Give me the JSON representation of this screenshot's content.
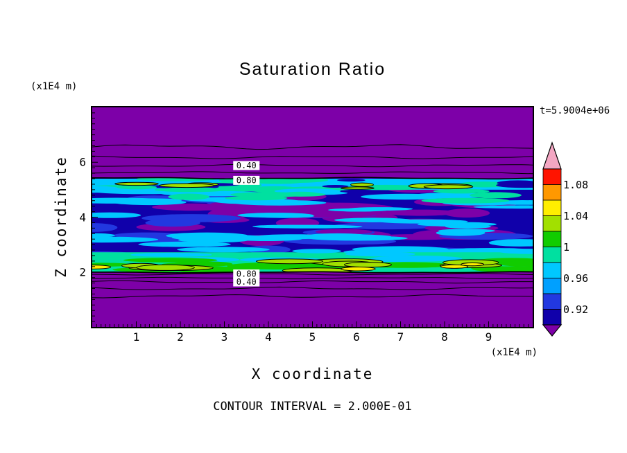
{
  "chart_data": {
    "type": "heatmap",
    "title": "Saturation Ratio",
    "time_label": "t=5.9004e+06",
    "note": "CONTOUR INTERVAL = 2.000E-01",
    "contour_interval": 0.2,
    "x_axis": {
      "label": "X coordinate",
      "unit": "(x1E4 m)",
      "min": 0,
      "max": 10,
      "major_ticks": [
        1,
        2,
        3,
        4,
        5,
        6,
        7,
        8,
        9
      ],
      "minor_step": 0.1
    },
    "z_axis": {
      "label": "Z coordinate",
      "unit": "(x1E4 m)",
      "min": 0,
      "max": 8,
      "major_ticks": [
        2,
        4,
        6
      ],
      "minor_step": 0.2
    },
    "colorbar": {
      "arrow_top": {
        "color": "#f4a7c3",
        "meaning": "> 1.10"
      },
      "arrow_bottom": {
        "color": "#7d00a8",
        "meaning": "< 0.90"
      },
      "segments": [
        {
          "from": 1.08,
          "to": 1.1,
          "color": "#ff1400"
        },
        {
          "from": 1.06,
          "to": 1.08,
          "color": "#ff9800"
        },
        {
          "from": 1.04,
          "to": 1.06,
          "color": "#ffee00"
        },
        {
          "from": 1.02,
          "to": 1.04,
          "color": "#a2e000"
        },
        {
          "from": 1.0,
          "to": 1.02,
          "color": "#11cc00"
        },
        {
          "from": 0.98,
          "to": 1.0,
          "color": "#00e0a0"
        },
        {
          "from": 0.96,
          "to": 0.98,
          "color": "#00c8ff"
        },
        {
          "from": 0.94,
          "to": 0.96,
          "color": "#00a0ff"
        },
        {
          "from": 0.92,
          "to": 0.94,
          "color": "#2238e0"
        },
        {
          "from": 0.9,
          "to": 0.92,
          "color": "#1000aa"
        }
      ],
      "tick_labels": [
        {
          "text": "1.08",
          "value": 1.08
        },
        {
          "text": "1.04",
          "value": 1.04
        },
        {
          "text": "1",
          "value": 1.0
        },
        {
          "text": "0.96",
          "value": 0.96
        },
        {
          "text": "0.92",
          "value": 0.92
        }
      ]
    },
    "palette": {
      "purple": "#7d00a8",
      "navy": "#1000aa",
      "blue": "#2238e0",
      "cyan": "#00c8ff",
      "teal": "#00e0a0",
      "green": "#11cc00",
      "greenyellow": "#a2e000",
      "yellow": "#ffee00"
    },
    "field_region": {
      "z_bottom": 1.99,
      "z_top": 5.42
    },
    "field_layers": [
      {
        "name": "mid-base",
        "type": "band",
        "z0": 1.99,
        "z1": 5.42,
        "color": "navy"
      },
      {
        "name": "purple-mottle",
        "type": "blobs",
        "seed": 11,
        "n": 26,
        "z0": 3.1,
        "z1": 5.05,
        "rx": [
          0.45,
          1.3
        ],
        "rz": [
          0.1,
          0.22
        ],
        "color": "purple"
      },
      {
        "name": "blue-streaks",
        "type": "blobs",
        "seed": 22,
        "n": 24,
        "z0": 2.5,
        "z1": 5.1,
        "rx": [
          0.5,
          1.3
        ],
        "rz": [
          0.09,
          0.18
        ],
        "color": "blue"
      },
      {
        "name": "purple-mottle-2",
        "type": "blobs",
        "seed": 33,
        "n": 12,
        "z0": 3.3,
        "z1": 4.6,
        "rx": [
          0.4,
          1.0
        ],
        "rz": [
          0.08,
          0.16
        ],
        "color": "purple"
      },
      {
        "name": "cyan-mid",
        "type": "blobs",
        "seed": 44,
        "n": 16,
        "z0": 3.2,
        "z1": 4.6,
        "rx": [
          0.5,
          1.2
        ],
        "rz": [
          0.06,
          0.12
        ],
        "color": "cyan"
      },
      {
        "name": "top-band",
        "type": "band",
        "z0": 5.0,
        "z1": 5.4,
        "color": "cyan"
      },
      {
        "name": "top-teal",
        "type": "blobs",
        "seed": 55,
        "n": 14,
        "z0": 5.0,
        "z1": 5.4,
        "rx": [
          0.4,
          1.1
        ],
        "rz": [
          0.06,
          0.12
        ],
        "color": "teal"
      },
      {
        "name": "top-gaps",
        "type": "blobs",
        "seed": 66,
        "n": 9,
        "z0": 5.02,
        "z1": 5.4,
        "rx": [
          0.3,
          0.8
        ],
        "rz": [
          0.05,
          0.1
        ],
        "color": "navy"
      },
      {
        "name": "upper-cyan-spill",
        "type": "blobs",
        "seed": 77,
        "n": 14,
        "z0": 4.5,
        "z1": 5.05,
        "rx": [
          0.5,
          1.3
        ],
        "rz": [
          0.07,
          0.13
        ],
        "color": "cyan"
      },
      {
        "name": "upper-teal",
        "type": "blobs",
        "seed": 88,
        "n": 10,
        "z0": 4.6,
        "z1": 5.1,
        "rx": [
          0.4,
          1.0
        ],
        "rz": [
          0.06,
          0.12
        ],
        "color": "teal"
      },
      {
        "name": "low-cyan",
        "type": "blobs",
        "seed": 99,
        "n": 18,
        "z0": 2.6,
        "z1": 3.5,
        "rx": [
          0.5,
          1.3
        ],
        "rz": [
          0.07,
          0.14
        ],
        "color": "cyan"
      },
      {
        "name": "bottom-band",
        "type": "band",
        "z0": 1.99,
        "z1": 2.72,
        "color": "teal"
      },
      {
        "name": "bottom-cyan",
        "type": "blobs",
        "seed": 111,
        "n": 10,
        "z0": 2.4,
        "z1": 2.85,
        "rx": [
          0.5,
          1.1
        ],
        "rz": [
          0.06,
          0.12
        ],
        "color": "cyan"
      },
      {
        "name": "bottom-green",
        "type": "blobs",
        "seed": 122,
        "n": 14,
        "z0": 2.05,
        "z1": 2.55,
        "rx": [
          0.45,
          1.2
        ],
        "rz": [
          0.07,
          0.14
        ],
        "color": "green"
      },
      {
        "name": "bottom-greenyellow",
        "type": "blobs",
        "seed": 133,
        "n": 10,
        "z0": 2.05,
        "z1": 2.4,
        "rx": [
          0.4,
          1.0
        ],
        "rz": [
          0.06,
          0.12
        ],
        "color": "greenyellow",
        "stroke": true
      },
      {
        "name": "bottom-yellow",
        "type": "blobs",
        "seed": 177,
        "n": 4,
        "z0": 2.08,
        "z1": 2.3,
        "rx": [
          0.25,
          0.5
        ],
        "rz": [
          0.05,
          0.08
        ],
        "color": "yellow",
        "stroke": true
      },
      {
        "name": "top-left-gy",
        "type": "blobs",
        "seed": 144,
        "n": 3,
        "x0": 0.9,
        "x1": 2.6,
        "z0": 5.12,
        "z1": 5.3,
        "rx": [
          0.35,
          0.7
        ],
        "rz": [
          0.05,
          0.09
        ],
        "color": "greenyellow",
        "stroke": true
      },
      {
        "name": "top-right-gy",
        "type": "blobs",
        "seed": 155,
        "n": 3,
        "x0": 7.3,
        "x1": 9.1,
        "z0": 5.1,
        "z1": 5.3,
        "rx": [
          0.35,
          0.7
        ],
        "rz": [
          0.05,
          0.09
        ],
        "color": "greenyellow",
        "stroke": true
      },
      {
        "name": "mid-gy",
        "type": "blobs",
        "seed": 166,
        "n": 2,
        "x0": 4.4,
        "x1": 6.6,
        "z0": 5.05,
        "z1": 5.2,
        "rx": [
          0.25,
          0.5
        ],
        "rz": [
          0.04,
          0.08
        ],
        "color": "greenyellow",
        "stroke": true
      }
    ],
    "contour_lines": [
      {
        "z": 6.56,
        "amp": 0.06,
        "w": 1.0
      },
      {
        "z": 6.18,
        "amp": 0.035,
        "w": 1.0
      },
      {
        "z": 5.88,
        "amp": 0.03,
        "w": 1.0
      },
      {
        "z": 5.62,
        "amp": 0.025,
        "w": 1.0
      },
      {
        "z": 5.42,
        "amp": 0.02,
        "w": 1.6
      },
      {
        "z": 1.99,
        "amp": 0.015,
        "w": 1.8
      },
      {
        "z": 1.92,
        "amp": 0.02,
        "w": 1.0
      },
      {
        "z": 1.78,
        "amp": 0.02,
        "w": 1.0
      },
      {
        "z": 1.64,
        "amp": 0.03,
        "w": 1.0
      },
      {
        "z": 1.4,
        "amp": 0.035,
        "w": 1.0
      },
      {
        "z": 1.12,
        "amp": 0.04,
        "w": 1.0
      }
    ],
    "contour_labels": [
      {
        "text": "0.40",
        "x": 3.5,
        "z": 5.88
      },
      {
        "text": "0.80",
        "x": 3.5,
        "z": 5.34
      },
      {
        "text": "0.80",
        "x": 3.5,
        "z": 1.93
      },
      {
        "text": "0.40",
        "x": 3.5,
        "z": 1.64
      }
    ]
  }
}
